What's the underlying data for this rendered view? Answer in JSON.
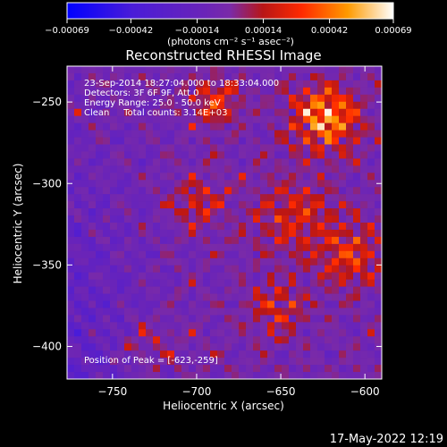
{
  "chart_data": {
    "type": "heatmap",
    "title": "Reconstructed RHESSI Image",
    "xlabel": "Heliocentric X (arcsec)",
    "ylabel": "Heliocentric Y (arcsec)",
    "xlim": [
      -777,
      -590
    ],
    "ylim": [
      -420,
      -228
    ],
    "xticks": [
      -750,
      -700,
      -650,
      -600
    ],
    "yticks": [
      -250,
      -300,
      -350,
      -400
    ],
    "xtick_labels": [
      "−750",
      "−700",
      "−650",
      "−600"
    ],
    "ytick_labels": [
      "−250",
      "−300",
      "−350",
      "−400"
    ],
    "colorbar": {
      "range": [
        -0.00069,
        0.00069
      ],
      "ticks": [
        -0.00069,
        -0.00042,
        -0.00014,
        0.00014,
        0.00042,
        0.00069
      ],
      "tick_labels": [
        "−0.00069",
        "−0.00042",
        "−0.00014",
        "0.00014",
        "0.00042",
        "0.00069"
      ],
      "unit_label": "(photons cm⁻² s⁻¹ asec⁻²)",
      "colors": [
        "#0000ff",
        "#5a1ad0",
        "#7a2aa8",
        "#c01010",
        "#ff3a00",
        "#ffa000",
        "#ffffff"
      ]
    },
    "peak_position": [
      -623,
      -259
    ],
    "annotations": [
      "23-Sep-2014 18:27:04.000 to 18:33:04.000",
      "Detectors: 3F 6F 9F, Att 0",
      "Energy Range: 25.0 - 50.0 keV",
      "Clean     Total counts: 3.14E+03",
      "Position of Peak = [-623,-259]"
    ]
  },
  "footer": {
    "timestamp": "17-May-2022 12:19"
  }
}
